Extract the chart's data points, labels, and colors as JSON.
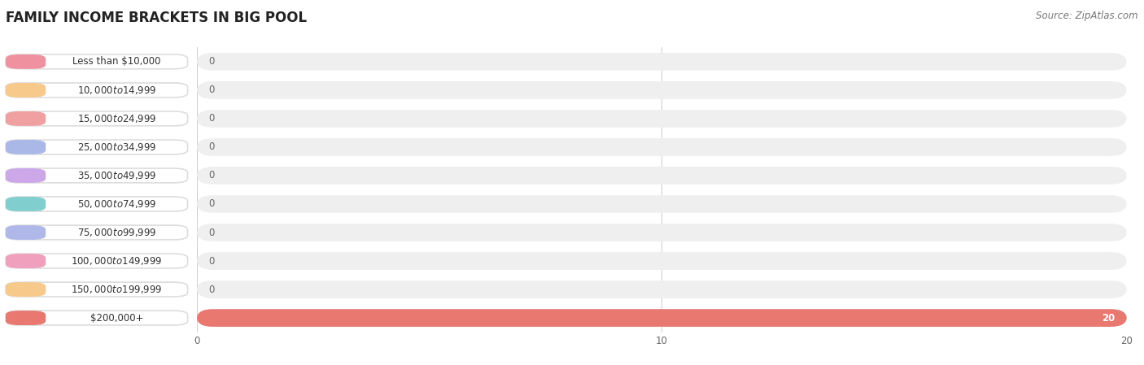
{
  "title": "FAMILY INCOME BRACKETS IN BIG POOL",
  "source": "Source: ZipAtlas.com",
  "categories": [
    "Less than $10,000",
    "$10,000 to $14,999",
    "$15,000 to $24,999",
    "$25,000 to $34,999",
    "$35,000 to $49,999",
    "$50,000 to $74,999",
    "$75,000 to $99,999",
    "$100,000 to $149,999",
    "$150,000 to $199,999",
    "$200,000+"
  ],
  "values": [
    0,
    0,
    0,
    0,
    0,
    0,
    0,
    0,
    0,
    20
  ],
  "bar_colors": [
    "#f0919f",
    "#f7c98a",
    "#f0a0a0",
    "#aab8e8",
    "#cca8e8",
    "#80cece",
    "#b0b8ea",
    "#f0a0bc",
    "#f7c98a",
    "#e87870"
  ],
  "xlim": [
    0,
    20
  ],
  "background_color": "#ffffff",
  "bar_bg_color": "#efefef",
  "title_fontsize": 12,
  "label_fontsize": 8.5,
  "value_fontsize": 8.5,
  "tick_fontsize": 8.5,
  "source_fontsize": 8.5
}
